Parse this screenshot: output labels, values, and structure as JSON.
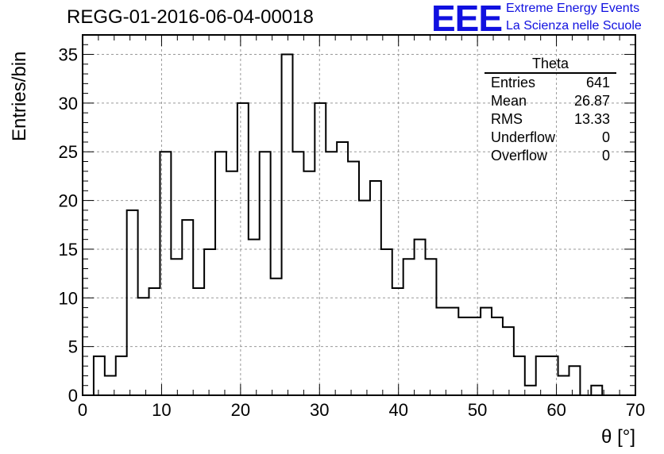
{
  "header": {
    "title": "REGG-01-2016-06-04-00018",
    "logo_text": "EEE",
    "logo_line1": "Extreme Energy Events",
    "logo_line2": "La Scienza nelle Scuole"
  },
  "stats": {
    "title": "Theta",
    "rows": [
      {
        "label": "Entries",
        "value": "641"
      },
      {
        "label": "Mean",
        "value": "26.87"
      },
      {
        "label": "RMS",
        "value": "13.33"
      },
      {
        "label": "Underflow",
        "value": "0"
      },
      {
        "label": "Overflow",
        "value": "0"
      }
    ]
  },
  "colors": {
    "line": "#000000",
    "grid": "#999999",
    "logo": "#1010e0"
  },
  "chart_data": {
    "type": "histogram",
    "xlabel": "θ [°]",
    "ylabel": "Entries/bin",
    "xlim": [
      0,
      70
    ],
    "ylim": [
      0,
      37
    ],
    "xticks": [
      0,
      10,
      20,
      30,
      40,
      50,
      60,
      70
    ],
    "yticks": [
      0,
      5,
      10,
      15,
      20,
      25,
      30,
      35
    ],
    "grid": true,
    "bin_width": 1.4,
    "bin_edges_start": 0,
    "values": [
      0,
      4,
      2,
      4,
      19,
      10,
      11,
      25,
      14,
      18,
      11,
      15,
      25,
      23,
      30,
      16,
      25,
      12,
      35,
      25,
      23,
      30,
      25,
      26,
      24,
      20,
      22,
      15,
      11,
      14,
      16,
      14,
      9,
      9,
      8,
      8,
      9,
      8,
      7,
      4,
      1,
      4,
      4,
      2,
      3,
      0,
      1,
      0,
      0,
      0
    ]
  }
}
